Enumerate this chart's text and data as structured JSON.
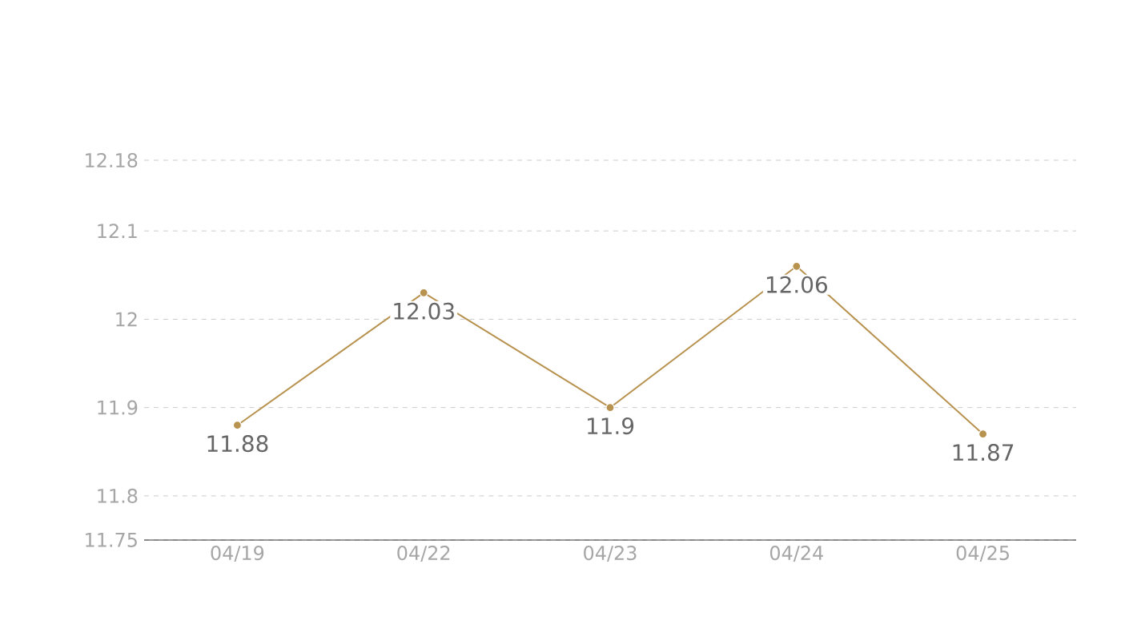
{
  "chart_data": {
    "type": "line",
    "categories": [
      "04/19",
      "04/22",
      "04/23",
      "04/24",
      "04/25"
    ],
    "series": [
      {
        "color": "#b8924f",
        "values": [
          11.88,
          12.03,
          11.9,
          12.06,
          11.87
        ]
      }
    ],
    "ylim": [
      11.75,
      12.18
    ],
    "yticks": [
      11.75,
      11.8,
      11.9,
      12,
      12.1,
      12.18
    ],
    "grid": "y",
    "marker": "circle",
    "line_style": "solid",
    "data_labels": true,
    "legend": false
  }
}
